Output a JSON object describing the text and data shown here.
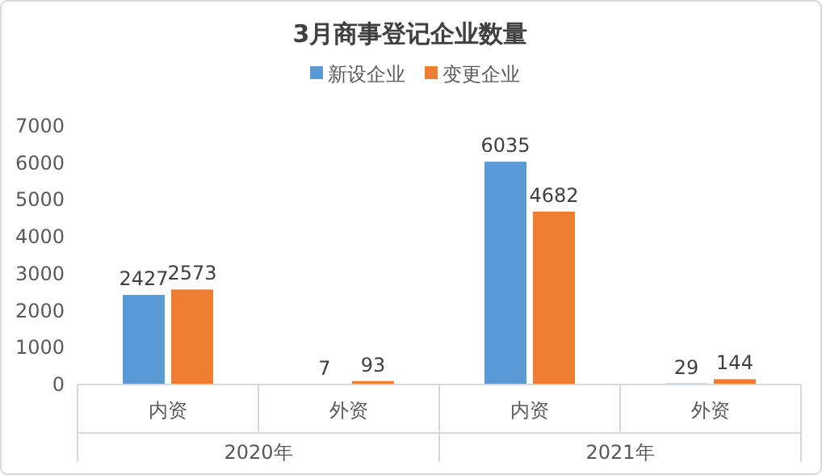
{
  "chart_data": {
    "type": "bar",
    "title": "3月商事登记企业数量",
    "categories": [
      "内资",
      "外资",
      "内资",
      "外资"
    ],
    "series": [
      {
        "name": "新设企业",
        "color": "#5b9bd5",
        "values": [
          2427,
          7,
          6035,
          29
        ]
      },
      {
        "name": "变更企业",
        "color": "#ed7d31",
        "values": [
          2573,
          93,
          4682,
          144
        ]
      }
    ],
    "ylim": [
      0,
      7000
    ],
    "yticks": [
      0,
      1000,
      2000,
      3000,
      4000,
      5000,
      6000,
      7000
    ],
    "data_labels": true,
    "legend": "top",
    "annotations": [
      "2020年",
      "2021年"
    ]
  }
}
